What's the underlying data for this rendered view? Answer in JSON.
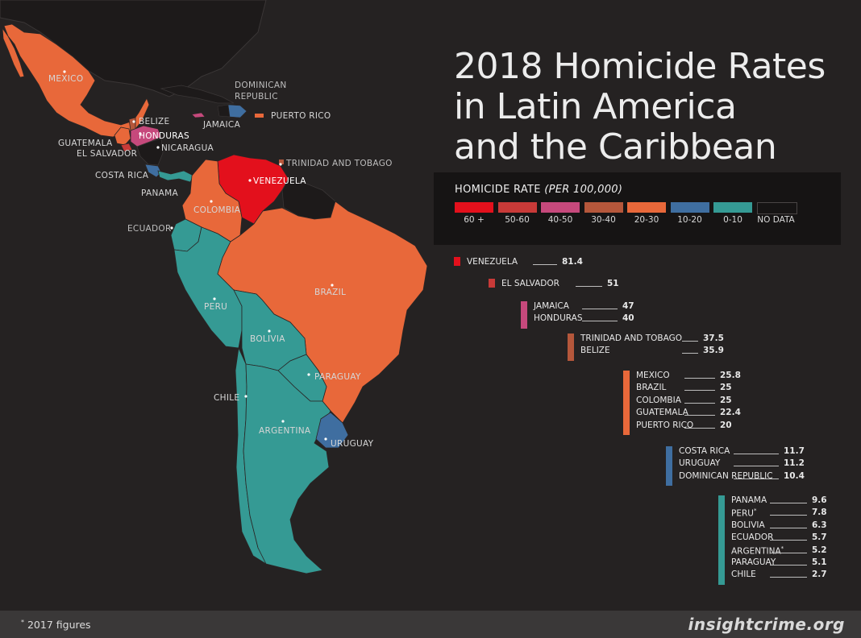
{
  "title": {
    "line1": "2018 Homicide Rates",
    "line2": "in Latin America",
    "line3": "and the Caribbean"
  },
  "legend": {
    "title": "HOMICIDE RATE",
    "subtitle": "(PER 100,000)",
    "items": [
      {
        "label": "60 +",
        "color": "#e3101c"
      },
      {
        "label": "50-60",
        "color": "#c83a38"
      },
      {
        "label": "40-50",
        "color": "#c6497c"
      },
      {
        "label": "30-40",
        "color": "#b5573b"
      },
      {
        "label": "20-30",
        "color": "#e8683a"
      },
      {
        "label": "10-20",
        "color": "#3f6ea0"
      },
      {
        "label": "0-10",
        "color": "#359a94"
      },
      {
        "label": "NO DATA",
        "color": "#161414"
      }
    ]
  },
  "ranking": [
    {
      "color": "#e3101c",
      "rows": [
        {
          "name": "VENEZUELA",
          "value": "81.4"
        }
      ]
    },
    {
      "color": "#c83a38",
      "rows": [
        {
          "name": "EL SALVADOR",
          "value": "51"
        }
      ]
    },
    {
      "color": "#c6497c",
      "rows": [
        {
          "name": "JAMAICA",
          "value": "47"
        },
        {
          "name": "HONDURAS",
          "value": "40"
        }
      ]
    },
    {
      "color": "#b5573b",
      "rows": [
        {
          "name": "TRINIDAD AND TOBAGO",
          "value": "37.5"
        },
        {
          "name": "BELIZE",
          "value": "35.9"
        }
      ]
    },
    {
      "color": "#e8683a",
      "rows": [
        {
          "name": "MEXICO",
          "value": "25.8"
        },
        {
          "name": "BRAZIL",
          "value": "25"
        },
        {
          "name": "COLOMBIA",
          "value": "25"
        },
        {
          "name": "GUATEMALA",
          "value": "22.4"
        },
        {
          "name": "PUERTO RICO",
          "value": "20"
        }
      ]
    },
    {
      "color": "#3f6ea0",
      "rows": [
        {
          "name": "COSTA RICA",
          "value": "11.7"
        },
        {
          "name": "URUGUAY",
          "value": "11.2"
        },
        {
          "name": "DOMINICAN REPUBLIC",
          "value": "10.4"
        }
      ]
    },
    {
      "color": "#359a94",
      "rows": [
        {
          "name": "PANAMA",
          "value": "9.6"
        },
        {
          "name": "PERU",
          "value": "7.8",
          "note": "*"
        },
        {
          "name": "BOLIVIA",
          "value": "6.3"
        },
        {
          "name": "ECUADOR",
          "value": "5.7"
        },
        {
          "name": "ARGENTINA",
          "value": "5.2",
          "note": "*"
        },
        {
          "name": "PARAGUAY",
          "value": "5.1"
        },
        {
          "name": "CHILE",
          "value": "2.7"
        }
      ]
    }
  ],
  "map_labels": {
    "mexico": "MEXICO",
    "dominican_republic_1": "DOMINICAN",
    "dominican_republic_2": "REPUBLIC",
    "jamaica": "JAMAICA",
    "puerto_rico": "PUERTO RICO",
    "belize": "BELIZE",
    "honduras": "HONDURAS",
    "guatemala": "GUATEMALA",
    "el_salvador": "EL SALVADOR",
    "nicaragua": "NICARAGUA",
    "trinidad": "TRINIDAD AND TOBAGO",
    "costa_rica": "COSTA RICA",
    "venezuela": "VENEZUELA",
    "panama": "PANAMA",
    "colombia": "COLOMBIA",
    "ecuador": "ECUADOR",
    "brazil": "BRAZIL",
    "peru": "PERU",
    "bolivia": "BOLIVIA",
    "paraguay": "PARAGUAY",
    "chile": "CHILE",
    "argentina": "ARGENTINA",
    "uruguay": "URUGUAY"
  },
  "footer": {
    "note_mark": "*",
    "note": " 2017 figures",
    "brand": "insightcrime.org"
  }
}
